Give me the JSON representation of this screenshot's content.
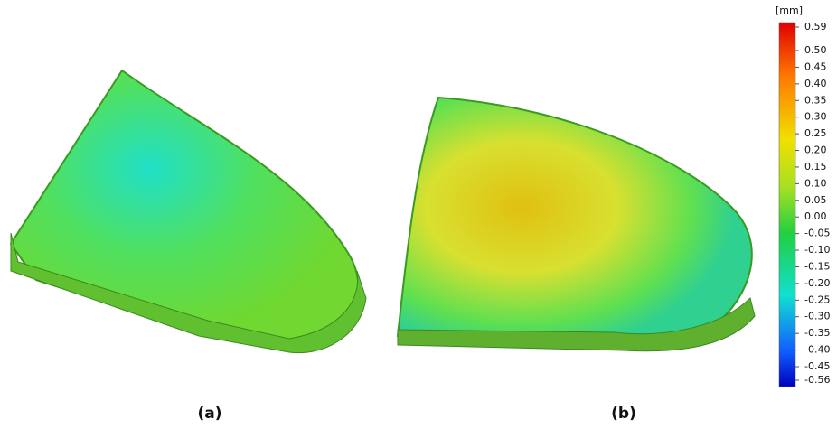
{
  "panels": [
    {
      "label": "(a)"
    },
    {
      "label": "(b)"
    }
  ],
  "colorbar": {
    "unit": "[mm]",
    "ticks": [
      "0.59",
      "0.50",
      "0.45",
      "0.40",
      "0.35",
      "0.30",
      "0.25",
      "0.20",
      "0.15",
      "0.10",
      "0.05",
      "0.00",
      "-0.05",
      "-0.10",
      "-0.15",
      "-0.20",
      "-0.25",
      "-0.30",
      "-0.35",
      "-0.40",
      "-0.45",
      "-0.56"
    ]
  }
}
